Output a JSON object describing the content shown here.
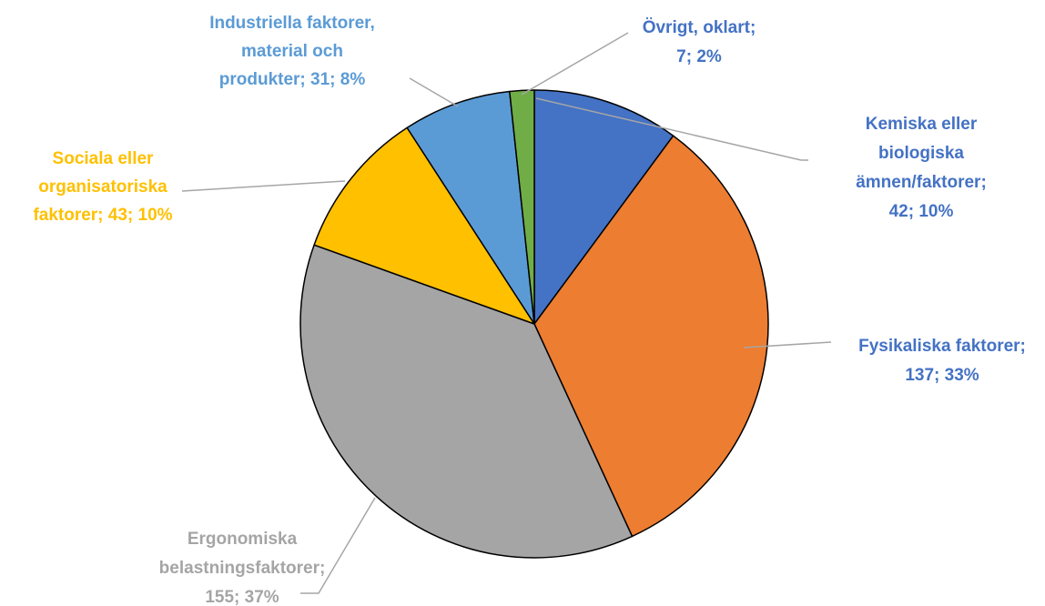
{
  "chart_data": {
    "type": "pie",
    "title": "",
    "slices": [
      {
        "name": "Kemiska eller biologiska ämnen/faktorer",
        "value": 42,
        "percent": "10%",
        "color": "#4472C4",
        "label_lines": [
          "Kemiska eller",
          "biologiska",
          "ämnen/faktorer;",
          "42; 10%"
        ]
      },
      {
        "name": "Fysikaliska faktorer",
        "value": 137,
        "percent": "33%",
        "color": "#ED7D31",
        "label_lines": [
          "Fysikaliska faktorer;",
          "137; 33%"
        ]
      },
      {
        "name": "Ergonomiska belastningsfaktorer",
        "value": 155,
        "percent": "37%",
        "color": "#A5A5A5",
        "label_lines": [
          "Ergonomiska",
          "belastningsfaktorer;",
          "155; 37%"
        ]
      },
      {
        "name": "Sociala eller organisatoriska faktorer",
        "value": 43,
        "percent": "10%",
        "color": "#FFC000",
        "label_lines": [
          "Sociala eller",
          "organisatoriska",
          "faktorer; 43; 10%"
        ]
      },
      {
        "name": "Industriella faktorer, material och produkter",
        "value": 31,
        "percent": "8%",
        "color": "#5B9BD5",
        "label_lines": [
          "Industriella faktorer,",
          "material och",
          "produkter; 31; 8%"
        ]
      },
      {
        "name": "Övrigt, oklart",
        "value": 7,
        "percent": "2%",
        "color": "#70AD47",
        "label_lines": [
          "Övrigt, oklart;",
          "7; 2%"
        ]
      }
    ],
    "label_colors": {
      "Kemiska eller biologiska ämnen/faktorer": "#4472C4",
      "Fysikaliska faktorer": "#4472C4",
      "Ergonomiska belastningsfaktorer": "#A5A5A5",
      "Sociala eller organisatoriska faktorer": "#FFC000",
      "Industriella faktorer, material och produkter": "#5B9BD5",
      "Övrigt, oklart": "#4472C4"
    },
    "legend": "none",
    "start_angle": "12 o'clock, clockwise"
  }
}
